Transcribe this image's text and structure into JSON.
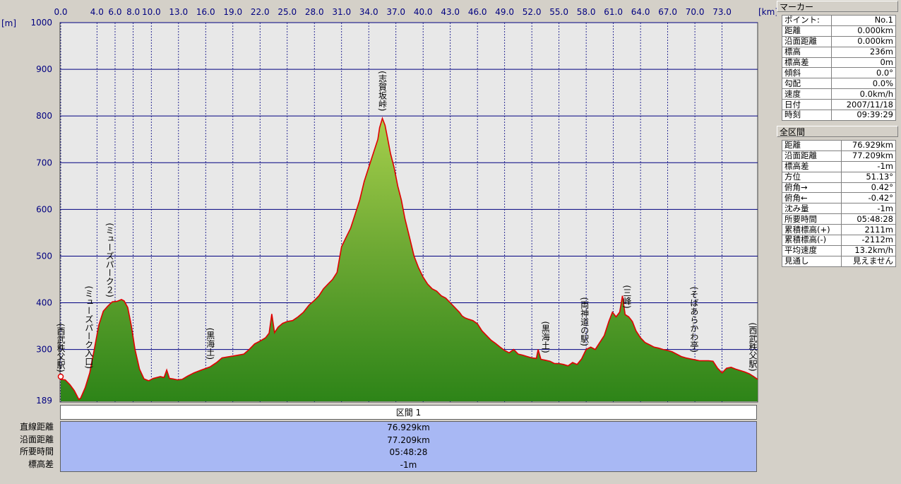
{
  "chart_data": {
    "type": "area",
    "x_unit": "[km]",
    "y_unit": "[m]",
    "x_ticks": [
      "0.0",
      "4.0",
      "6.0",
      "8.0",
      "10.0",
      "13.0",
      "16.0",
      "19.0",
      "22.0",
      "25.0",
      "28.0",
      "31.0",
      "34.0",
      "37.0",
      "40.0",
      "43.0",
      "46.0",
      "49.0",
      "52.0",
      "55.0",
      "58.0",
      "61.0",
      "64.0",
      "67.0",
      "70.0",
      "73.0"
    ],
    "y_ticks": [
      1000,
      900,
      800,
      700,
      600,
      500,
      400,
      300
    ],
    "ymin_label": "189",
    "ylim": [
      189,
      1000
    ],
    "xlim": [
      0,
      76.929
    ],
    "grid": true,
    "series": [
      {
        "x": [
          0,
          0.5,
          1,
          1.5,
          2,
          2.2,
          2.7,
          3.2,
          3.7,
          4.2,
          4.7,
          5.2,
          5.7,
          6.2,
          6.7,
          7.0,
          7.4,
          7.8,
          8.2,
          8.7,
          9.2,
          9.7,
          10.2,
          10.6,
          11.0,
          11.4,
          11.7,
          12.0,
          12.4,
          12.9,
          13.4,
          14.0,
          14.7,
          15.5,
          16.5,
          17.2,
          17.8,
          18.4,
          19.0,
          19.6,
          20.2,
          20.8,
          21.4,
          22.0,
          22.6,
          23.0,
          23.3,
          23.6,
          24.0,
          24.5,
          25.0,
          25.6,
          26.2,
          26.8,
          27.4,
          28.0,
          28.5,
          29.0,
          29.5,
          30.0,
          30.5,
          31.0,
          31.5,
          32.0,
          32.5,
          33.0,
          33.5,
          34.0,
          34.5,
          35.0,
          35.2,
          35.5,
          35.8,
          36.1,
          36.4,
          36.8,
          37.2,
          37.6,
          38.0,
          38.5,
          39.0,
          39.5,
          40.0,
          40.5,
          41.0,
          41.5,
          42.0,
          42.5,
          43.0,
          43.5,
          44.0,
          44.3,
          44.6,
          45.0,
          45.5,
          46.0,
          46.5,
          47.0,
          47.5,
          48.0,
          48.5,
          49.0,
          49.5,
          50.0,
          50.5,
          51.0,
          51.5,
          52.0,
          52.5,
          52.7,
          53.0,
          53.5,
          54.0,
          54.5,
          55.0,
          55.5,
          56.0,
          56.5,
          57.0,
          57.5,
          58.0,
          58.5,
          59.0,
          59.5,
          60.0,
          60.5,
          60.9,
          61.3,
          61.7,
          62.0,
          62.3,
          62.7,
          63.1,
          63.5,
          64.0,
          64.5,
          65.0,
          65.5,
          66.0,
          66.5,
          67.0,
          67.5,
          68.0,
          68.5,
          69.0,
          69.5,
          70.0,
          70.5,
          71.0,
          71.5,
          72.0,
          72.5,
          73.0,
          73.5,
          74.0,
          74.5,
          75.0,
          75.5,
          76.0,
          76.5,
          76.929
        ],
        "y": [
          236,
          235,
          225,
          212,
          193,
          196,
          218,
          250,
          300,
          352,
          382,
          393,
          402,
          403,
          407,
          404,
          390,
          350,
          300,
          258,
          237,
          233,
          238,
          240,
          242,
          240,
          256,
          238,
          237,
          235,
          236,
          243,
          250,
          256,
          263,
          272,
          282,
          284,
          286,
          288,
          290,
          300,
          312,
          318,
          325,
          335,
          376,
          336,
          348,
          356,
          360,
          362,
          370,
          380,
          395,
          405,
          415,
          430,
          440,
          450,
          465,
          520,
          540,
          560,
          590,
          620,
          660,
          690,
          720,
          750,
          775,
          795,
          780,
          750,
          720,
          690,
          650,
          620,
          580,
          540,
          500,
          475,
          455,
          440,
          430,
          425,
          415,
          410,
          400,
          390,
          380,
          372,
          368,
          365,
          362,
          355,
          340,
          330,
          320,
          313,
          305,
          298,
          293,
          300,
          290,
          288,
          285,
          282,
          281,
          300,
          279,
          277,
          275,
          270,
          270,
          268,
          265,
          272,
          268,
          280,
          300,
          305,
          300,
          315,
          330,
          360,
          380,
          370,
          380,
          415,
          375,
          370,
          360,
          340,
          325,
          315,
          310,
          305,
          303,
          300,
          298,
          295,
          290,
          285,
          282,
          280,
          278,
          276,
          276,
          276,
          275,
          260,
          250,
          260,
          262,
          258,
          255,
          252,
          248,
          242,
          236
        ]
      }
    ],
    "annotations": [
      {
        "x": 0.0,
        "label": "(西武秩父駅)"
      },
      {
        "x": 3.1,
        "label": "(ミューズパーク入口)"
      },
      {
        "x": 5.4,
        "label": "(ミューズパーク２)"
      },
      {
        "x": 16.5,
        "label": "(黒海土)"
      },
      {
        "x": 35.5,
        "label": "(志賀坂峠)"
      },
      {
        "x": 53.5,
        "label": "(黒海土)"
      },
      {
        "x": 57.8,
        "label": "(両神道の駅)"
      },
      {
        "x": 62.5,
        "label": "(三峰)"
      },
      {
        "x": 69.9,
        "label": "(そばあらかわ亭)"
      },
      {
        "x": 76.8,
        "label": "(西武秩父駅)"
      }
    ],
    "colors": {
      "plot_bg": "#e8e8e8",
      "grid_h": "#000080",
      "grid_v": "#000080",
      "area_fill_top": "#9cc844",
      "area_fill_bottom": "#2f8a1a",
      "area_line": "#e00000",
      "axis_text": "#000080"
    }
  },
  "marker_panel": {
    "title": "マーカー",
    "rows": [
      {
        "label": "ポイント:",
        "value": "No.1"
      },
      {
        "label": "距離",
        "value": "0.000km"
      },
      {
        "label": "沿面距離",
        "value": "0.000km"
      },
      {
        "label": "標高",
        "value": "236m"
      },
      {
        "label": "標高差",
        "value": "0m"
      },
      {
        "label": "傾斜",
        "value": "0.0°"
      },
      {
        "label": "勾配",
        "value": "0.0%"
      },
      {
        "label": "速度",
        "value": "0.0km/h"
      },
      {
        "label": "日付",
        "value": "2007/11/18"
      },
      {
        "label": "時刻",
        "value": "09:39:29"
      }
    ]
  },
  "total_panel": {
    "title": "全区間",
    "rows": [
      {
        "label": "距離",
        "value": "76.929km"
      },
      {
        "label": "沿面距離",
        "value": "77.209km"
      },
      {
        "label": "標高差",
        "value": "-1m"
      },
      {
        "label": "方位",
        "value": "51.13°"
      },
      {
        "label": "俯角→",
        "value": "0.42°"
      },
      {
        "label": "俯角←",
        "value": "-0.42°"
      },
      {
        "label": "沈み量",
        "value": "-1m"
      },
      {
        "label": "所要時間",
        "value": "05:48:28"
      },
      {
        "label": "累積標高(+)",
        "value": "2111m"
      },
      {
        "label": "累積標高(-)",
        "value": "-2112m"
      },
      {
        "label": "平均速度",
        "value": "13.2km/h"
      },
      {
        "label": "見通し",
        "value": "見えません"
      }
    ]
  },
  "section": {
    "title": "区間 1",
    "labels": [
      "直線距離",
      "沿面距離",
      "所要時間",
      "標高差"
    ],
    "values": [
      "76.929km",
      "77.209km",
      "05:48:28",
      "-1m"
    ]
  }
}
